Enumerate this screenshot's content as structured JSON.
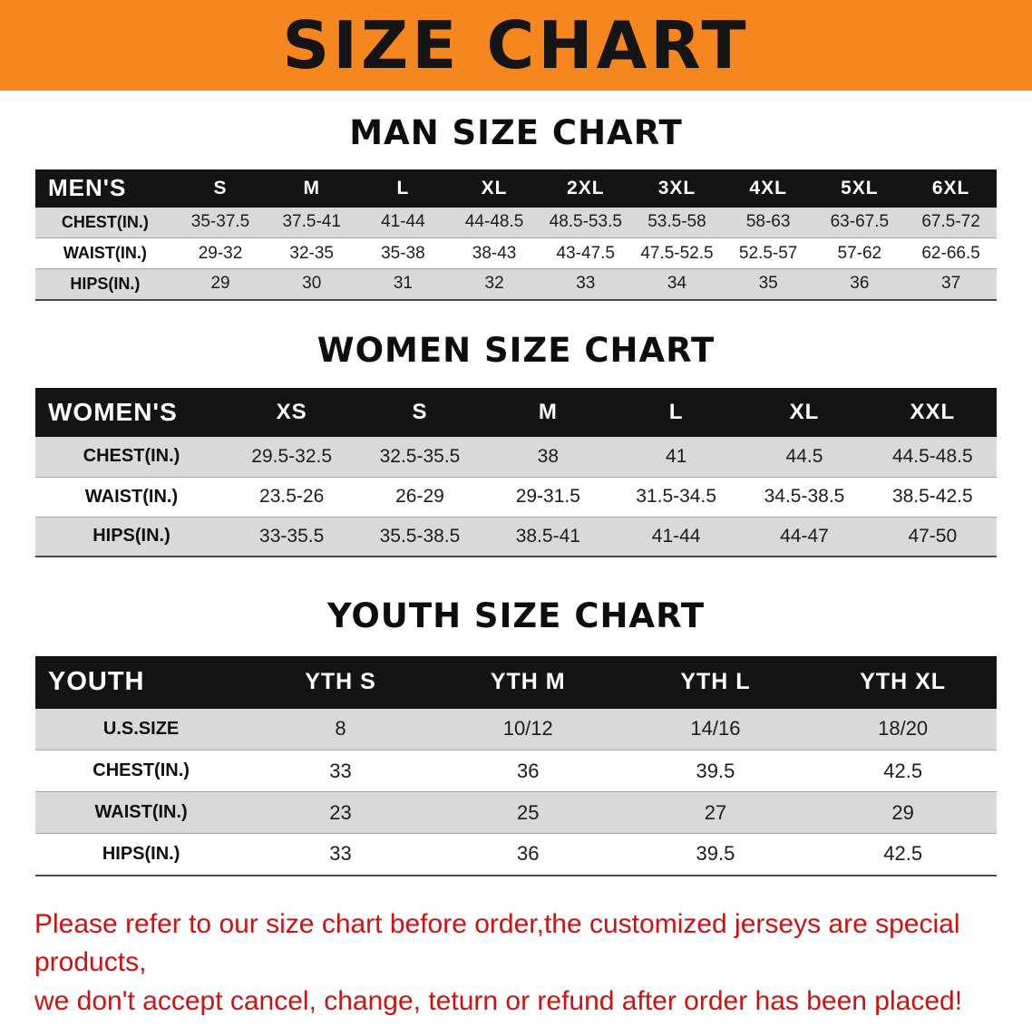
{
  "banner": {
    "title": "SIZE CHART"
  },
  "colors": {
    "banner_bg": "#f6871f",
    "table_header_bg": "#141414",
    "row_alt_gray": "#d9d9d9",
    "notice_red": "#cc1212"
  },
  "sections": [
    {
      "heading": "MAN SIZE CHART",
      "table": {
        "label": "MEN'S",
        "columns": [
          "S",
          "M",
          "L",
          "XL",
          "2XL",
          "3XL",
          "4XL",
          "5XL",
          "6XL"
        ],
        "rows": [
          {
            "label": "CHEST(IN.)",
            "values": [
              "35-37.5",
              "37.5-41",
              "41-44",
              "44-48.5",
              "48.5-53.5",
              "53.5-58",
              "58-63",
              "63-67.5",
              "67.5-72"
            ]
          },
          {
            "label": "WAIST(IN.)",
            "values": [
              "29-32",
              "32-35",
              "35-38",
              "38-43",
              "43-47.5",
              "47.5-52.5",
              "52.5-57",
              "57-62",
              "62-66.5"
            ]
          },
          {
            "label": "HIPS(IN.)",
            "values": [
              "29",
              "30",
              "31",
              "32",
              "33",
              "34",
              "35",
              "36",
              "37"
            ]
          }
        ]
      }
    },
    {
      "heading": "WOMEN SIZE CHART",
      "table": {
        "label": "WOMEN'S",
        "columns": [
          "XS",
          "S",
          "M",
          "L",
          "XL",
          "XXL"
        ],
        "rows": [
          {
            "label": "CHEST(IN.)",
            "values": [
              "29.5-32.5",
              "32.5-35.5",
              "38",
              "41",
              "44.5",
              "44.5-48.5"
            ]
          },
          {
            "label": "WAIST(IN.)",
            "values": [
              "23.5-26",
              "26-29",
              "29-31.5",
              "31.5-34.5",
              "34.5-38.5",
              "38.5-42.5"
            ]
          },
          {
            "label": "HIPS(IN.)",
            "values": [
              "33-35.5",
              "35.5-38.5",
              "38.5-41",
              "41-44",
              "44-47",
              "47-50"
            ]
          }
        ]
      }
    },
    {
      "heading": "YOUTH SIZE CHART",
      "table": {
        "label": "YOUTH",
        "columns": [
          "YTH S",
          "YTH M",
          "YTH L",
          "YTH XL"
        ],
        "rows": [
          {
            "label": "U.S.SIZE",
            "values": [
              "8",
              "10/12",
              "14/16",
              "18/20"
            ]
          },
          {
            "label": "CHEST(IN.)",
            "values": [
              "33",
              "36",
              "39.5",
              "42.5"
            ]
          },
          {
            "label": "WAIST(IN.)",
            "values": [
              "23",
              "25",
              "27",
              "29"
            ]
          },
          {
            "label": "HIPS(IN.)",
            "values": [
              "33",
              "36",
              "39.5",
              "42.5"
            ]
          }
        ]
      }
    }
  ],
  "notice": {
    "line1": "Please refer to our size chart before order,the customized jerseys are special products,",
    "line2": "we don't accept cancel, change, teturn or refund after order has been placed!"
  }
}
